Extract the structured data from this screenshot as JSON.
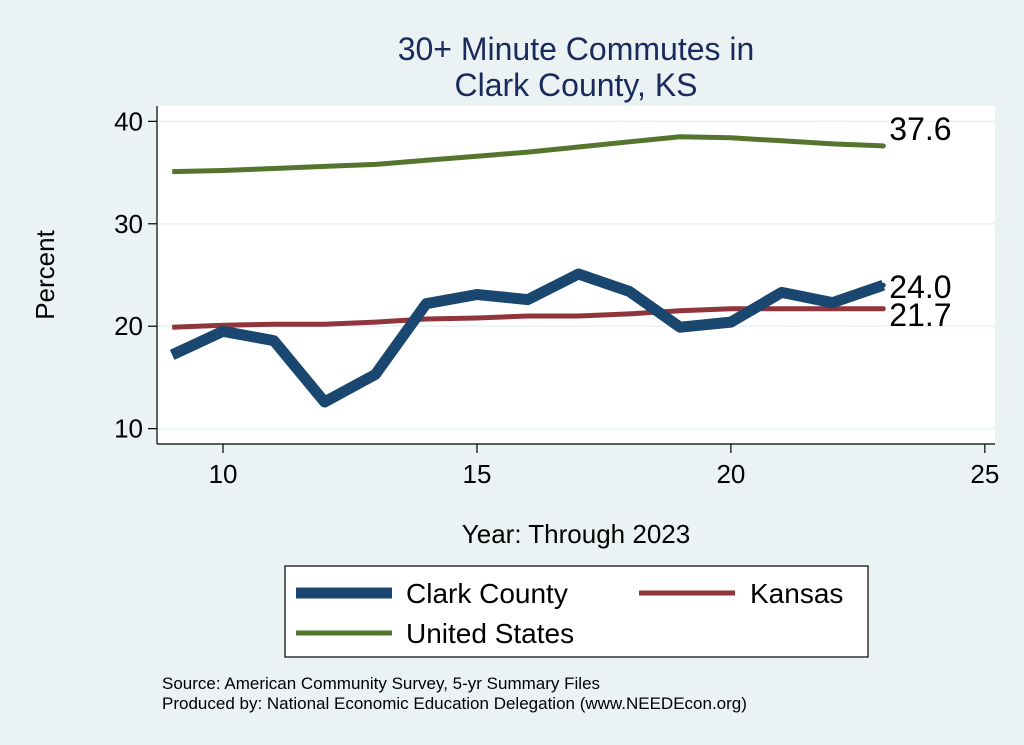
{
  "chart_data": {
    "type": "line",
    "title": [
      "30+ Minute Commutes in",
      "Clark County, KS"
    ],
    "xlabel": "Year: Through 2023",
    "ylabel": "Percent",
    "xlim": [
      8.7,
      25.2
    ],
    "ylim": [
      8.5,
      41.5
    ],
    "xticks": [
      10,
      15,
      20,
      25
    ],
    "yticks": [
      10,
      20,
      30,
      40
    ],
    "grid": true,
    "legend_position": "bottom",
    "series": [
      {
        "name": "Clark County",
        "color": "#1a476f",
        "x": [
          9,
          10,
          11,
          12,
          13,
          14,
          15,
          16,
          17,
          18,
          19,
          20,
          21,
          22,
          23
        ],
        "y": [
          17.2,
          19.5,
          18.6,
          12.6,
          15.3,
          22.2,
          23.1,
          22.6,
          25.1,
          23.4,
          19.9,
          20.4,
          23.3,
          22.3,
          24.0
        ],
        "end_label": "24.0"
      },
      {
        "name": "Kansas",
        "color": "#90353b",
        "x": [
          9,
          10,
          11,
          12,
          13,
          14,
          15,
          16,
          17,
          18,
          19,
          20,
          21,
          22,
          23
        ],
        "y": [
          19.9,
          20.1,
          20.2,
          20.2,
          20.4,
          20.7,
          20.8,
          21.0,
          21.0,
          21.2,
          21.5,
          21.7,
          21.7,
          21.7,
          21.7
        ],
        "end_label": "21.7"
      },
      {
        "name": "United States",
        "color": "#55752f",
        "x": [
          9,
          10,
          11,
          12,
          13,
          14,
          15,
          16,
          17,
          18,
          19,
          20,
          21,
          22,
          23
        ],
        "y": [
          35.1,
          35.2,
          35.4,
          35.6,
          35.8,
          36.2,
          36.6,
          37.0,
          37.5,
          38.0,
          38.5,
          38.4,
          38.1,
          37.8,
          37.6
        ],
        "end_label": "37.6"
      }
    ],
    "source_lines": [
      "Source: American Community Survey, 5-yr Summary Files",
      "Produced by: National Economic Education Delegation (www.NEEDEcon.org)"
    ]
  }
}
